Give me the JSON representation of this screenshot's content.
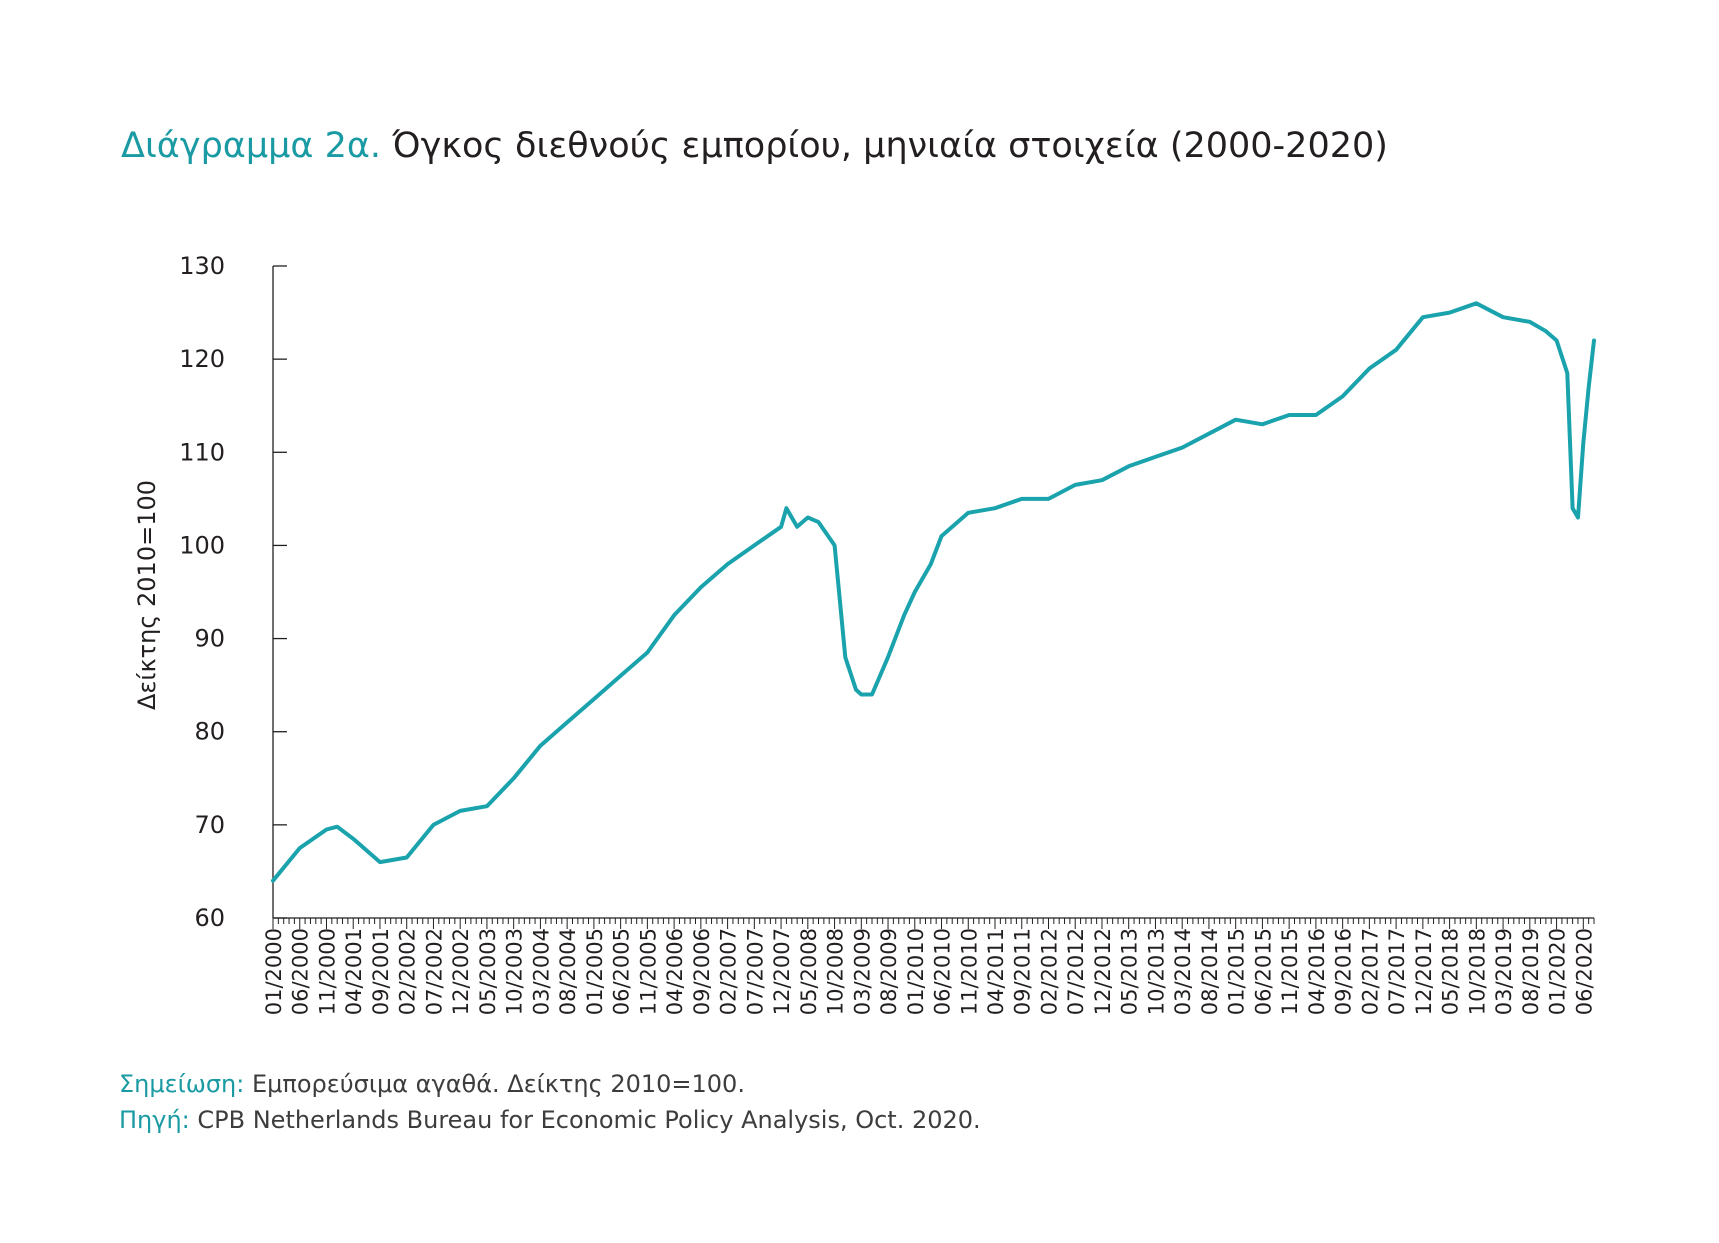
{
  "title": {
    "prefix": "Διάγραμμα 2α.",
    "main": "Όγκος διεθνούς εμπορίου, μηνιαία στοιχεία (2000-2020)"
  },
  "colors": {
    "accent": "#1a9aa3",
    "line": "#1aa3ad",
    "axis": "#231f20"
  },
  "notes": {
    "note_label": "Σημείωση:",
    "note_text": " Εμπορεύσιμα αγαθά. Δείκτης 2010=100.",
    "source_label": "Πηγή:",
    "source_text": " CPB Netherlands Bureau for Economic Policy Analysis, Oct. 2020."
  },
  "chart_data": {
    "type": "line",
    "ylabel": "Δείκτης 2010=100",
    "xlabel": "",
    "ylim": [
      60,
      130
    ],
    "yticks": [
      60,
      70,
      80,
      90,
      100,
      110,
      120,
      130
    ],
    "xlim": [
      "01/2000",
      "08/2020"
    ],
    "xtick_labels": [
      "01/2000",
      "06/2000",
      "11/2000",
      "04/2001",
      "09/2001",
      "02/2002",
      "07/2002",
      "12/2002",
      "05/2003",
      "10/2003",
      "03/2004",
      "08/2004",
      "01/2005",
      "06/2005",
      "11/2005",
      "04/2006",
      "09/2006",
      "02/2007",
      "07/2007",
      "12/2007",
      "05/2008",
      "10/2008",
      "03/2009",
      "08/2009",
      "01/2010",
      "06/2010",
      "11/2010",
      "04/2011",
      "09/2011",
      "02/2012",
      "07/2012",
      "12/2012",
      "05/2013",
      "10/2013",
      "03/2014",
      "08/2014",
      "01/2015",
      "06/2015",
      "11/2015",
      "04/2016",
      "09/2016",
      "02/2017",
      "07/2017",
      "12/2017",
      "05/2018",
      "10/2018",
      "03/2019",
      "08/2019",
      "01/2020",
      "06/2020"
    ],
    "grid": false,
    "series": [
      {
        "points": [
          [
            "01/2000",
            64
          ],
          [
            "06/2000",
            67.5
          ],
          [
            "11/2000",
            69.5
          ],
          [
            "01/2001",
            69.8
          ],
          [
            "04/2001",
            68.5
          ],
          [
            "09/2001",
            66
          ],
          [
            "02/2002",
            66.5
          ],
          [
            "07/2002",
            70
          ],
          [
            "12/2002",
            71.5
          ],
          [
            "05/2003",
            72
          ],
          [
            "10/2003",
            75
          ],
          [
            "03/2004",
            78.5
          ],
          [
            "08/2004",
            81
          ],
          [
            "01/2005",
            83.5
          ],
          [
            "06/2005",
            86
          ],
          [
            "11/2005",
            88.5
          ],
          [
            "04/2006",
            92.5
          ],
          [
            "09/2006",
            95.5
          ],
          [
            "02/2007",
            98
          ],
          [
            "07/2007",
            100
          ],
          [
            "12/2007",
            102
          ],
          [
            "01/2008",
            104
          ],
          [
            "03/2008",
            102
          ],
          [
            "05/2008",
            103
          ],
          [
            "07/2008",
            102.5
          ],
          [
            "10/2008",
            100
          ],
          [
            "12/2008",
            88
          ],
          [
            "02/2009",
            84.5
          ],
          [
            "03/2009",
            84
          ],
          [
            "05/2009",
            84
          ],
          [
            "08/2009",
            88
          ],
          [
            "11/2009",
            92.5
          ],
          [
            "01/2010",
            95
          ],
          [
            "04/2010",
            98
          ],
          [
            "06/2010",
            101
          ],
          [
            "11/2010",
            103.5
          ],
          [
            "04/2011",
            104
          ],
          [
            "09/2011",
            105
          ],
          [
            "02/2012",
            105
          ],
          [
            "07/2012",
            106.5
          ],
          [
            "12/2012",
            107
          ],
          [
            "05/2013",
            108.5
          ],
          [
            "10/2013",
            109.5
          ],
          [
            "03/2014",
            110.5
          ],
          [
            "08/2014",
            112
          ],
          [
            "01/2015",
            113.5
          ],
          [
            "06/2015",
            113
          ],
          [
            "11/2015",
            114
          ],
          [
            "04/2016",
            114
          ],
          [
            "09/2016",
            116
          ],
          [
            "02/2017",
            119
          ],
          [
            "07/2017",
            121
          ],
          [
            "12/2017",
            124.5
          ],
          [
            "05/2018",
            125
          ],
          [
            "10/2018",
            126
          ],
          [
            "03/2019",
            124.5
          ],
          [
            "08/2019",
            124
          ],
          [
            "11/2019",
            123
          ],
          [
            "01/2020",
            122
          ],
          [
            "03/2020",
            118.5
          ],
          [
            "04/2020",
            104
          ],
          [
            "05/2020",
            103
          ],
          [
            "06/2020",
            111
          ],
          [
            "07/2020",
            117
          ],
          [
            "08/2020",
            122
          ]
        ]
      }
    ]
  }
}
